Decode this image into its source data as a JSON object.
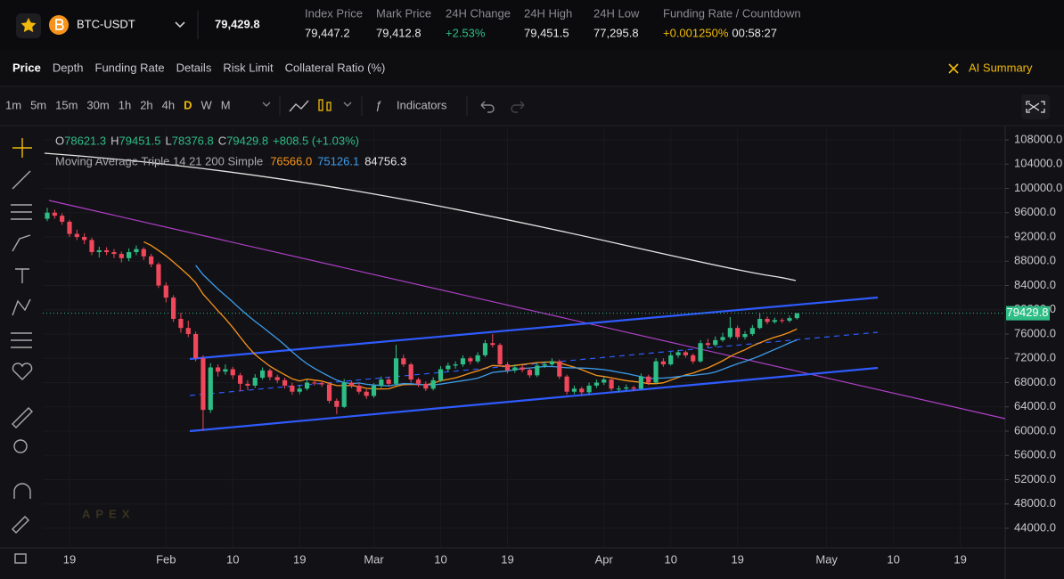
{
  "header": {
    "symbol": "BTC-USDT",
    "last_price": "79,429.8",
    "stats": [
      {
        "label": "Index Price",
        "value": "79,447.2"
      },
      {
        "label": "Mark Price",
        "value": "79,412.8"
      },
      {
        "label": "24H Change",
        "value": "+2.53%"
      },
      {
        "label": "24H High",
        "value": "79,451.5"
      },
      {
        "label": "24H Low",
        "value": "77,295.8"
      },
      {
        "label": "Funding Rate / Countdown",
        "value": "+0.001250%",
        "countdown": "00:58:27"
      }
    ]
  },
  "tabs": [
    "Price",
    "Depth",
    "Funding Rate",
    "Details",
    "Risk Limit",
    "Collateral Ratio (%)"
  ],
  "ai_summary": "AI Summary",
  "timeframes": [
    "1m",
    "5m",
    "15m",
    "30m",
    "1h",
    "2h",
    "4h",
    "D",
    "W",
    "M"
  ],
  "active_timeframe": "D",
  "indicators": "Indicators",
  "watermark": "APEX",
  "chart": {
    "type": "candlestick",
    "ohlc_labels": [
      "O",
      "H",
      "L",
      "C"
    ],
    "change": "+808.5 (+1.03%)",
    "indicator": "Moving Average Triple 14 21 200 Simple",
    "ma_values": [
      {
        "label": "76566.0",
        "color": "#f7931a"
      },
      {
        "label": "75126.1",
        "color": "#3d9be9"
      },
      {
        "label": "84756.3",
        "color": "#e6e6e6"
      }
    ],
    "colors": {
      "up": "#2ebd85",
      "down": "#f0475b"
    },
    "ylim": [
      40770,
      109760
    ],
    "yticks": [
      {
        "value": 108000,
        "label": "108000.0"
      },
      {
        "value": 104000,
        "label": "104000.0"
      },
      {
        "value": 100000,
        "label": "100000.0"
      },
      {
        "value": 96000,
        "label": "96000.0"
      },
      {
        "value": 92000,
        "label": "92000.0"
      },
      {
        "value": 88000,
        "label": "88000.0"
      },
      {
        "value": 84000,
        "label": "84000.0"
      },
      {
        "value": 80000,
        "label": "80000.0"
      },
      {
        "value": 76000,
        "label": "76000.0"
      },
      {
        "value": 72000,
        "label": "72000.0"
      },
      {
        "value": 68000,
        "label": "68000.0"
      },
      {
        "value": 64000,
        "label": "64000.0"
      },
      {
        "value": 60000,
        "label": "60000.0"
      },
      {
        "value": 56000,
        "label": "56000.0"
      },
      {
        "value": 52000,
        "label": "52000.0"
      },
      {
        "value": 48000,
        "label": "48000.0"
      },
      {
        "value": 44000,
        "label": "44000.0"
      }
    ],
    "xticks": [
      "19",
      "Feb",
      "10",
      "19",
      "Mar",
      "10",
      "19",
      "Apr",
      "10",
      "19",
      "May",
      "10",
      "19"
    ],
    "last_price": 79429.8,
    "candles": [
      [
        95000,
        96800,
        94600,
        96000
      ],
      [
        96000,
        96500,
        95000,
        95500
      ],
      [
        95500,
        95900,
        94000,
        94500
      ],
      [
        94500,
        94800,
        92000,
        92500
      ],
      [
        92500,
        93200,
        91500,
        92000
      ],
      [
        92000,
        92600,
        90800,
        91500
      ],
      [
        91500,
        91900,
        89000,
        89500
      ],
      [
        89500,
        90400,
        88600,
        89800
      ],
      [
        89800,
        90300,
        89000,
        89500
      ],
      [
        89500,
        90000,
        88500,
        89200
      ],
      [
        89200,
        89600,
        87800,
        88500
      ],
      [
        88500,
        90100,
        88000,
        89500
      ],
      [
        89500,
        90600,
        89000,
        90000
      ],
      [
        90000,
        90300,
        88200,
        88800
      ],
      [
        88800,
        89200,
        87000,
        87500
      ],
      [
        87500,
        87800,
        83600,
        84000
      ],
      [
        84000,
        84500,
        81200,
        82000
      ],
      [
        82000,
        82400,
        78000,
        78500
      ],
      [
        78500,
        79500,
        76200,
        77000
      ],
      [
        77000,
        78200,
        75500,
        76000
      ],
      [
        76000,
        76400,
        71500,
        72000
      ],
      [
        72000,
        72500,
        60100,
        63500
      ],
      [
        63500,
        71200,
        63000,
        70500
      ],
      [
        70500,
        71000,
        69000,
        69800
      ],
      [
        69800,
        71000,
        69300,
        70200
      ],
      [
        70200,
        70600,
        68600,
        69200
      ],
      [
        69200,
        69600,
        66600,
        67800
      ],
      [
        67800,
        68400,
        66800,
        67500
      ],
      [
        67500,
        69400,
        67100,
        68800
      ],
      [
        68800,
        70500,
        68500,
        70000
      ],
      [
        70000,
        70300,
        68400,
        68900
      ],
      [
        68900,
        69300,
        67900,
        68400
      ],
      [
        68400,
        68800,
        67000,
        67500
      ],
      [
        67500,
        68000,
        66000,
        66500
      ],
      [
        66500,
        67600,
        66100,
        67000
      ],
      [
        67000,
        68500,
        66700,
        68000
      ],
      [
        68000,
        68400,
        67500,
        67900
      ],
      [
        67900,
        68300,
        67300,
        67700
      ],
      [
        67700,
        68000,
        64600,
        65000
      ],
      [
        65000,
        65400,
        62800,
        64000
      ],
      [
        64000,
        68600,
        63800,
        68000
      ],
      [
        68000,
        68300,
        67100,
        67500
      ],
      [
        67500,
        67900,
        66100,
        66500
      ],
      [
        66500,
        66900,
        65300,
        65800
      ],
      [
        65800,
        67900,
        65500,
        67500
      ],
      [
        67500,
        69000,
        67100,
        68500
      ],
      [
        68500,
        68900,
        67400,
        67800
      ],
      [
        67800,
        74200,
        67500,
        72000
      ],
      [
        72000,
        72600,
        70600,
        71000
      ],
      [
        71000,
        71300,
        68000,
        68500
      ],
      [
        68500,
        68800,
        67300,
        67800
      ],
      [
        67800,
        68200,
        66600,
        67000
      ],
      [
        67000,
        68900,
        66700,
        68400
      ],
      [
        68400,
        70700,
        68100,
        70200
      ],
      [
        70200,
        71300,
        69800,
        70800
      ],
      [
        70800,
        71500,
        70300,
        71000
      ],
      [
        71000,
        72500,
        70600,
        72000
      ],
      [
        72000,
        72300,
        71000,
        71500
      ],
      [
        71500,
        73000,
        71200,
        72500
      ],
      [
        72500,
        75000,
        72200,
        74500
      ],
      [
        74500,
        76000,
        73800,
        74200
      ],
      [
        74200,
        74500,
        70600,
        71000
      ],
      [
        71000,
        71400,
        69500,
        70000
      ],
      [
        70000,
        71000,
        69600,
        70500
      ],
      [
        70500,
        70900,
        69700,
        70100
      ],
      [
        70100,
        70500,
        68800,
        69200
      ],
      [
        69200,
        71300,
        68900,
        70800
      ],
      [
        70800,
        71500,
        70400,
        71000
      ],
      [
        71000,
        72000,
        70700,
        71500
      ],
      [
        71500,
        71800,
        68600,
        69000
      ],
      [
        69000,
        69300,
        66000,
        66500
      ],
      [
        66500,
        67500,
        66100,
        67000
      ],
      [
        67000,
        67300,
        65800,
        66400
      ],
      [
        66400,
        68000,
        66000,
        67500
      ],
      [
        67500,
        68500,
        67100,
        68000
      ],
      [
        68000,
        69000,
        67600,
        68500
      ],
      [
        68500,
        68800,
        66600,
        67000
      ],
      [
        67000,
        67500,
        66500,
        67000
      ],
      [
        67000,
        67700,
        66700,
        67200
      ],
      [
        67200,
        67500,
        66600,
        67000
      ],
      [
        67000,
        69500,
        66800,
        69000
      ],
      [
        69000,
        69300,
        67600,
        68000
      ],
      [
        68000,
        72000,
        67800,
        71500
      ],
      [
        71500,
        72000,
        70600,
        71000
      ],
      [
        71000,
        73000,
        70800,
        72500
      ],
      [
        72500,
        73400,
        72100,
        73000
      ],
      [
        73000,
        73300,
        72100,
        72500
      ],
      [
        72500,
        72800,
        71100,
        71500
      ],
      [
        71500,
        75000,
        71300,
        74500
      ],
      [
        74500,
        75200,
        73800,
        74200
      ],
      [
        74200,
        75600,
        73900,
        75000
      ],
      [
        75000,
        76200,
        74700,
        75500
      ],
      [
        75500,
        78800,
        75200,
        77000
      ],
      [
        77000,
        77400,
        75100,
        75500
      ],
      [
        75500,
        76500,
        75100,
        76000
      ],
      [
        76000,
        77500,
        75700,
        77000
      ],
      [
        77000,
        79400,
        76800,
        78500
      ],
      [
        78500,
        78900,
        77600,
        78000
      ],
      [
        78000,
        78700,
        77700,
        78300
      ],
      [
        78300,
        78600,
        77800,
        78200
      ],
      [
        78200,
        79000,
        77900,
        78621.3
      ],
      [
        78621.3,
        79451.5,
        78376.8,
        79429.8
      ]
    ]
  }
}
